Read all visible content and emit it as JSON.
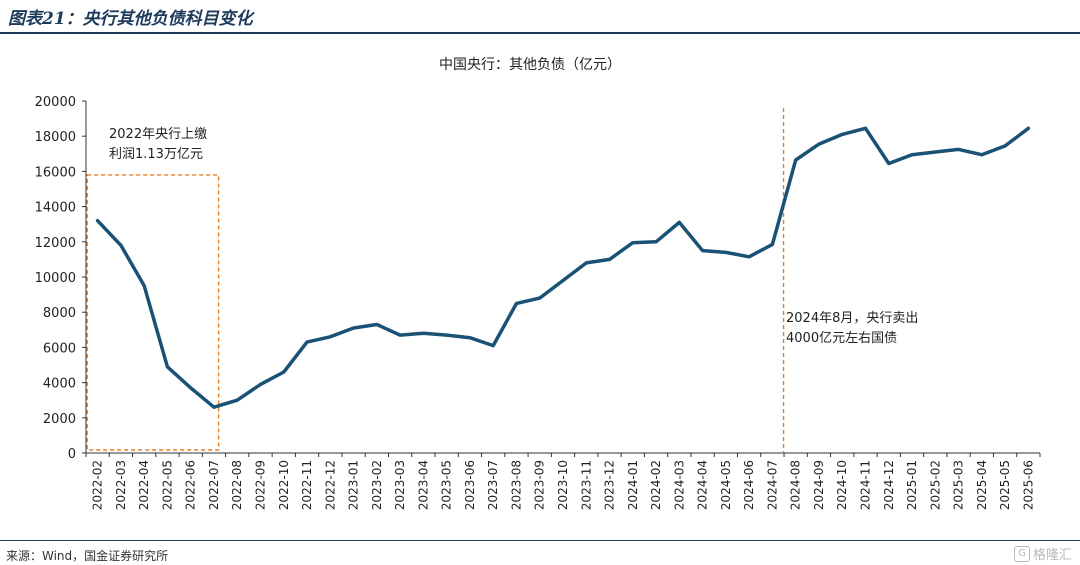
{
  "header": {
    "title": "图表21：央行其他负债科目变化"
  },
  "footer": {
    "source": "来源：Wind，国金证券研究所",
    "watermark": "格隆汇",
    "watermark_mark": "G"
  },
  "chart_data": {
    "type": "line",
    "title": "中国央行：其他负债（亿元）",
    "xlabel": "",
    "ylabel": "",
    "ylim": [
      0,
      20000
    ],
    "yticks": [
      0,
      2000,
      4000,
      6000,
      8000,
      10000,
      12000,
      14000,
      16000,
      18000,
      20000
    ],
    "grid": false,
    "line_color": "#1a5276",
    "annotation_color": "#e67e22",
    "x": [
      "2022-02",
      "2022-03",
      "2022-04",
      "2022-05",
      "2022-06",
      "2022-07",
      "2022-08",
      "2022-09",
      "2022-10",
      "2022-11",
      "2022-12",
      "2023-01",
      "2023-02",
      "2023-03",
      "2023-04",
      "2023-05",
      "2023-06",
      "2023-07",
      "2023-08",
      "2023-09",
      "2023-10",
      "2023-11",
      "2023-12",
      "2024-01",
      "2024-02",
      "2024-03",
      "2024-04",
      "2024-05",
      "2024-06",
      "2024-07",
      "2024-08",
      "2024-09",
      "2024-10",
      "2024-11",
      "2024-12",
      "2025-01",
      "2025-02",
      "2025-03",
      "2025-04",
      "2025-05",
      "2025-06"
    ],
    "series": [
      {
        "values": [
          13200,
          11800,
          9500,
          4900,
          3700,
          2600,
          3000,
          3900,
          4600,
          6300,
          6600,
          7100,
          7300,
          6700,
          6800,
          6700,
          6550,
          6100,
          8500,
          8800,
          9800,
          10800,
          11000,
          11950,
          12000,
          13100,
          11500,
          11400,
          11150,
          11850,
          16650,
          17550,
          18100,
          18450,
          16450,
          16950,
          17100,
          17250,
          16950,
          17450,
          18450
        ]
      }
    ],
    "annotations": [
      {
        "text_lines": [
          "2022年央行上缴",
          "利润1.13万亿元"
        ],
        "box_from": "2022-02",
        "box_to": "2022-07",
        "box_ymin": 0,
        "box_ymax": 15800
      },
      {
        "text_lines": [
          "2024年8月，央行卖出",
          "4000亿元左右国债"
        ],
        "vline_at": "2024-07"
      }
    ]
  }
}
